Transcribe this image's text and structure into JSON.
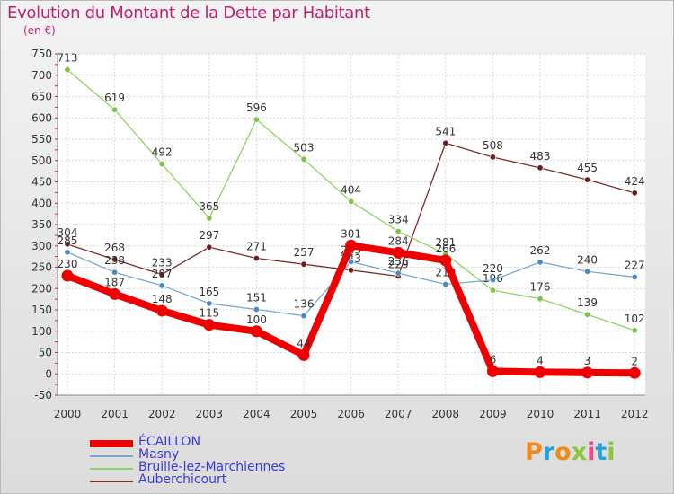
{
  "title": "Evolution du Montant de la Dette par Habitant",
  "unit": "(en €)",
  "logo": {
    "text": "Proxiti",
    "letter_colors": [
      "#f08b1b",
      "#2aa0d8",
      "#f08b1b",
      "#8cc63f",
      "#e94c8a",
      "#2aa0d8",
      "#8cc63f"
    ]
  },
  "chart_data": {
    "type": "line",
    "title": "Evolution du Montant de la Dette par Habitant",
    "ylabel": "(en €)",
    "xlabel": "",
    "ylim": [
      -50,
      750
    ],
    "yticks": [
      -50,
      0,
      50,
      100,
      150,
      200,
      250,
      300,
      350,
      400,
      450,
      500,
      550,
      600,
      650,
      700,
      750
    ],
    "x": [
      "2000",
      "2001",
      "2002",
      "2003",
      "2004",
      "2005",
      "2006",
      "2007",
      "2008",
      "2009",
      "2010",
      "2011",
      "2012"
    ],
    "grid": true,
    "legend_position": "bottom-left",
    "series": [
      {
        "name": "Bruille-lez-Marchiennes",
        "color": "#8cd35f",
        "point_color": "#7dc34a",
        "emphasis": false,
        "values": [
          713,
          619,
          492,
          365,
          596,
          503,
          404,
          334,
          281,
          196,
          176,
          139,
          102
        ],
        "labels": [
          "713",
          "619",
          "492",
          "365",
          "596",
          "503",
          "404",
          "334",
          "281",
          "196",
          "176",
          "139",
          "102"
        ]
      },
      {
        "name": "Auberchicourt",
        "color": "#7a2e2e",
        "point_color": "#6b1f1f",
        "emphasis": false,
        "values": [
          304,
          268,
          233,
          297,
          271,
          257,
          243,
          229,
          541,
          508,
          483,
          455,
          424
        ],
        "labels": [
          "304",
          "268",
          "233",
          "297",
          "271",
          "257",
          "243",
          "229",
          "541",
          "508",
          "483",
          "455",
          "424"
        ]
      },
      {
        "name": "Masny",
        "color": "#78a7cf",
        "point_color": "#4a8ac4",
        "emphasis": false,
        "values": [
          285,
          238,
          207,
          165,
          151,
          136,
          263,
          236,
          210,
          220,
          262,
          240,
          227
        ],
        "labels": [
          "285",
          "238",
          "207",
          "165",
          "151",
          "136",
          "263",
          "236",
          "210",
          "220",
          "262",
          "240",
          "227"
        ]
      },
      {
        "name": "ÉCAILLON",
        "color": "#ee0000",
        "point_color": "#ee0000",
        "emphasis": true,
        "values": [
          230,
          187,
          148,
          115,
          100,
          44,
          301,
          284,
          266,
          6,
          4,
          3,
          2
        ],
        "labels": [
          "230",
          "187",
          "148",
          "115",
          "100",
          "44",
          "301",
          "284",
          "266",
          "6",
          "4",
          "3",
          "2"
        ]
      }
    ],
    "legend_order": [
      "ÉCAILLON",
      "Masny",
      "Bruille-lez-Marchiennes",
      "Auberchicourt"
    ]
  }
}
